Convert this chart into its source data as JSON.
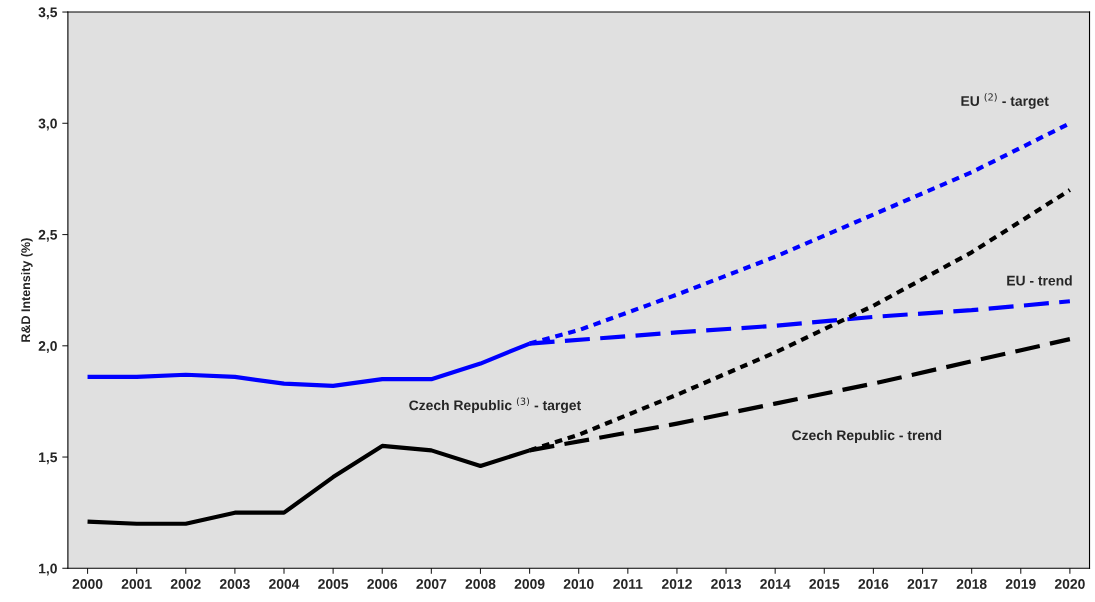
{
  "chart_data": {
    "type": "line",
    "ylabel": "R&D Intensity (%)",
    "xlim": [
      1999.6,
      2020.4
    ],
    "xticks": [
      2000,
      2001,
      2002,
      2003,
      2004,
      2005,
      2006,
      2007,
      2008,
      2009,
      2010,
      2011,
      2012,
      2013,
      2014,
      2015,
      2016,
      2017,
      2018,
      2019,
      2020
    ],
    "ylim": [
      1.0,
      3.5
    ],
    "yticks": [
      {
        "value": 1.0,
        "label": "1,0"
      },
      {
        "value": 1.5,
        "label": "1,5"
      },
      {
        "value": 2.0,
        "label": "2,0"
      },
      {
        "value": 2.5,
        "label": "2,5"
      },
      {
        "value": 3.0,
        "label": "3,0"
      },
      {
        "value": 3.5,
        "label": "3,5"
      }
    ],
    "grid": false,
    "legend": false,
    "marker": "none",
    "series": [
      {
        "color": "#0000ff",
        "line_style": "solid",
        "x": [
          2000,
          2001,
          2002,
          2003,
          2004,
          2005,
          2006,
          2007,
          2008,
          2009
        ],
        "values": [
          1.86,
          1.86,
          1.87,
          1.86,
          1.83,
          1.82,
          1.85,
          1.85,
          1.92,
          2.01
        ]
      },
      {
        "color": "#000000",
        "line_style": "solid",
        "x": [
          2000,
          2001,
          2002,
          2003,
          2004,
          2005,
          2006,
          2007,
          2008,
          2009
        ],
        "values": [
          1.21,
          1.2,
          1.2,
          1.25,
          1.25,
          1.41,
          1.55,
          1.53,
          1.46,
          1.53
        ]
      },
      {
        "color": "#0000ff",
        "line_style": "dotted",
        "x": [
          2009,
          2010,
          2012,
          2014,
          2016,
          2018,
          2020
        ],
        "values": [
          2.01,
          2.07,
          2.23,
          2.4,
          2.59,
          2.78,
          3.0
        ]
      },
      {
        "color": "#0000ff",
        "line_style": "dashed",
        "x": [
          2009,
          2012,
          2014,
          2016,
          2018,
          2020
        ],
        "values": [
          2.01,
          2.06,
          2.09,
          2.13,
          2.16,
          2.2
        ]
      },
      {
        "color": "#000000",
        "line_style": "dotted",
        "x": [
          2009,
          2010,
          2012,
          2014,
          2016,
          2018,
          2020
        ],
        "values": [
          1.53,
          1.6,
          1.78,
          1.97,
          2.18,
          2.42,
          2.7
        ]
      },
      {
        "color": "#000000",
        "line_style": "dashed",
        "x": [
          2009,
          2012,
          2014,
          2016,
          2018,
          2020
        ],
        "values": [
          1.53,
          1.65,
          1.74,
          1.83,
          1.93,
          2.03
        ]
      }
    ],
    "annotations": [
      "EU $^{(2)}$ - target",
      "EU - trend",
      "Czech Republic $^{(3)}$ - target",
      "Czech Republic - trend"
    ]
  }
}
